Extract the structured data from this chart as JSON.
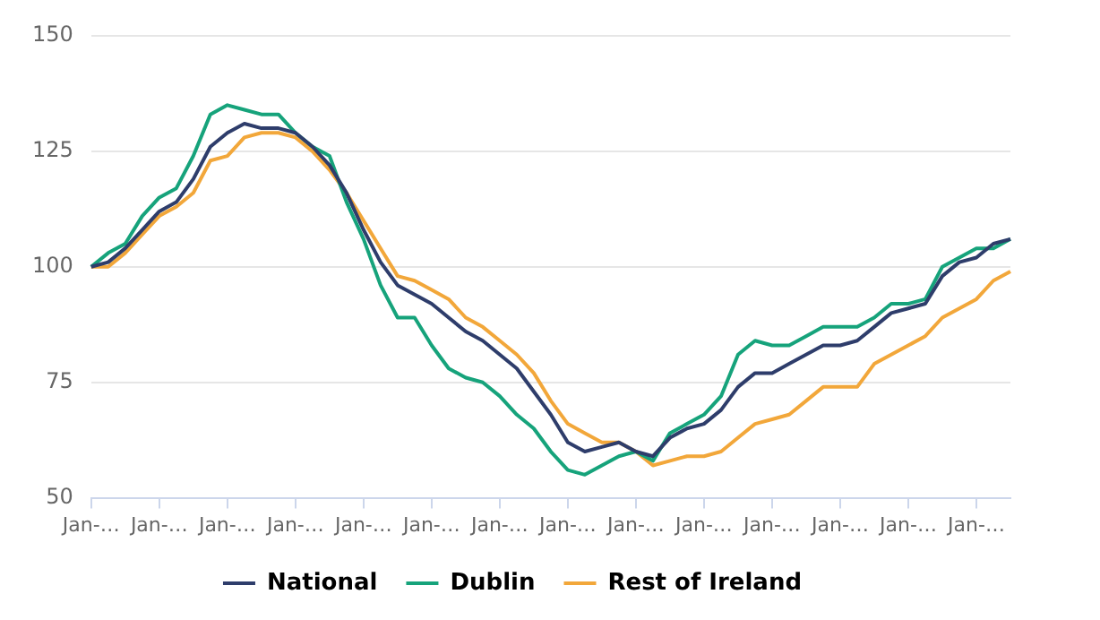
{
  "chart_data": {
    "type": "line",
    "categories": [
      "Jan-…",
      null,
      null,
      null,
      "Jan-…",
      null,
      null,
      null,
      "Jan-…",
      null,
      null,
      null,
      "Jan-…",
      null,
      null,
      null,
      "Jan-…",
      null,
      null,
      null,
      "Jan-…",
      null,
      null,
      null,
      "Jan-…",
      null,
      null,
      null,
      "Jan-…",
      null,
      null,
      null,
      "Jan-…",
      null,
      null,
      null,
      "Jan-…",
      null,
      null,
      null,
      "Jan-…",
      null,
      null,
      null,
      "Jan-…",
      null,
      null,
      null,
      "Jan-…",
      null,
      null,
      null,
      "Jan-…",
      null,
      null
    ],
    "series": [
      {
        "name": "National",
        "color": "#2e3d6b",
        "values": [
          100,
          101,
          104,
          108,
          112,
          114,
          119,
          126,
          129,
          131,
          130,
          130,
          129,
          126,
          122,
          116,
          108,
          101,
          96,
          94,
          92,
          89,
          86,
          84,
          81,
          78,
          73,
          68,
          62,
          60,
          61,
          62,
          60,
          59,
          63,
          65,
          66,
          69,
          74,
          77,
          77,
          79,
          81,
          83,
          83,
          84,
          87,
          90,
          91,
          92,
          98,
          101,
          102,
          105,
          106
        ]
      },
      {
        "name": "Dublin",
        "color": "#16a37b",
        "values": [
          100,
          103,
          105,
          111,
          115,
          117,
          124,
          133,
          135,
          134,
          133,
          133,
          129,
          126,
          124,
          114,
          106,
          96,
          89,
          89,
          83,
          78,
          76,
          75,
          72,
          68,
          65,
          60,
          56,
          55,
          57,
          59,
          60,
          58,
          64,
          66,
          68,
          72,
          81,
          84,
          83,
          83,
          85,
          87,
          87,
          87,
          89,
          92,
          92,
          93,
          100,
          102,
          104,
          104,
          106
        ]
      },
      {
        "name": "Rest of Ireland",
        "color": "#f2a73a",
        "values": [
          100,
          100,
          103,
          107,
          111,
          113,
          116,
          123,
          124,
          128,
          129,
          129,
          128,
          125,
          121,
          116,
          110,
          104,
          98,
          97,
          95,
          93,
          89,
          87,
          84,
          81,
          77,
          71,
          66,
          64,
          62,
          62,
          60,
          57,
          58,
          59,
          59,
          60,
          63,
          66,
          67,
          68,
          71,
          74,
          74,
          74,
          79,
          81,
          83,
          85,
          89,
          91,
          93,
          97,
          99
        ]
      }
    ],
    "ylim": [
      50,
      150
    ],
    "yticks": [
      50,
      75,
      100,
      125,
      150
    ],
    "grid": "y",
    "legend": "bottom",
    "marker": "none",
    "line_style": "solid"
  }
}
